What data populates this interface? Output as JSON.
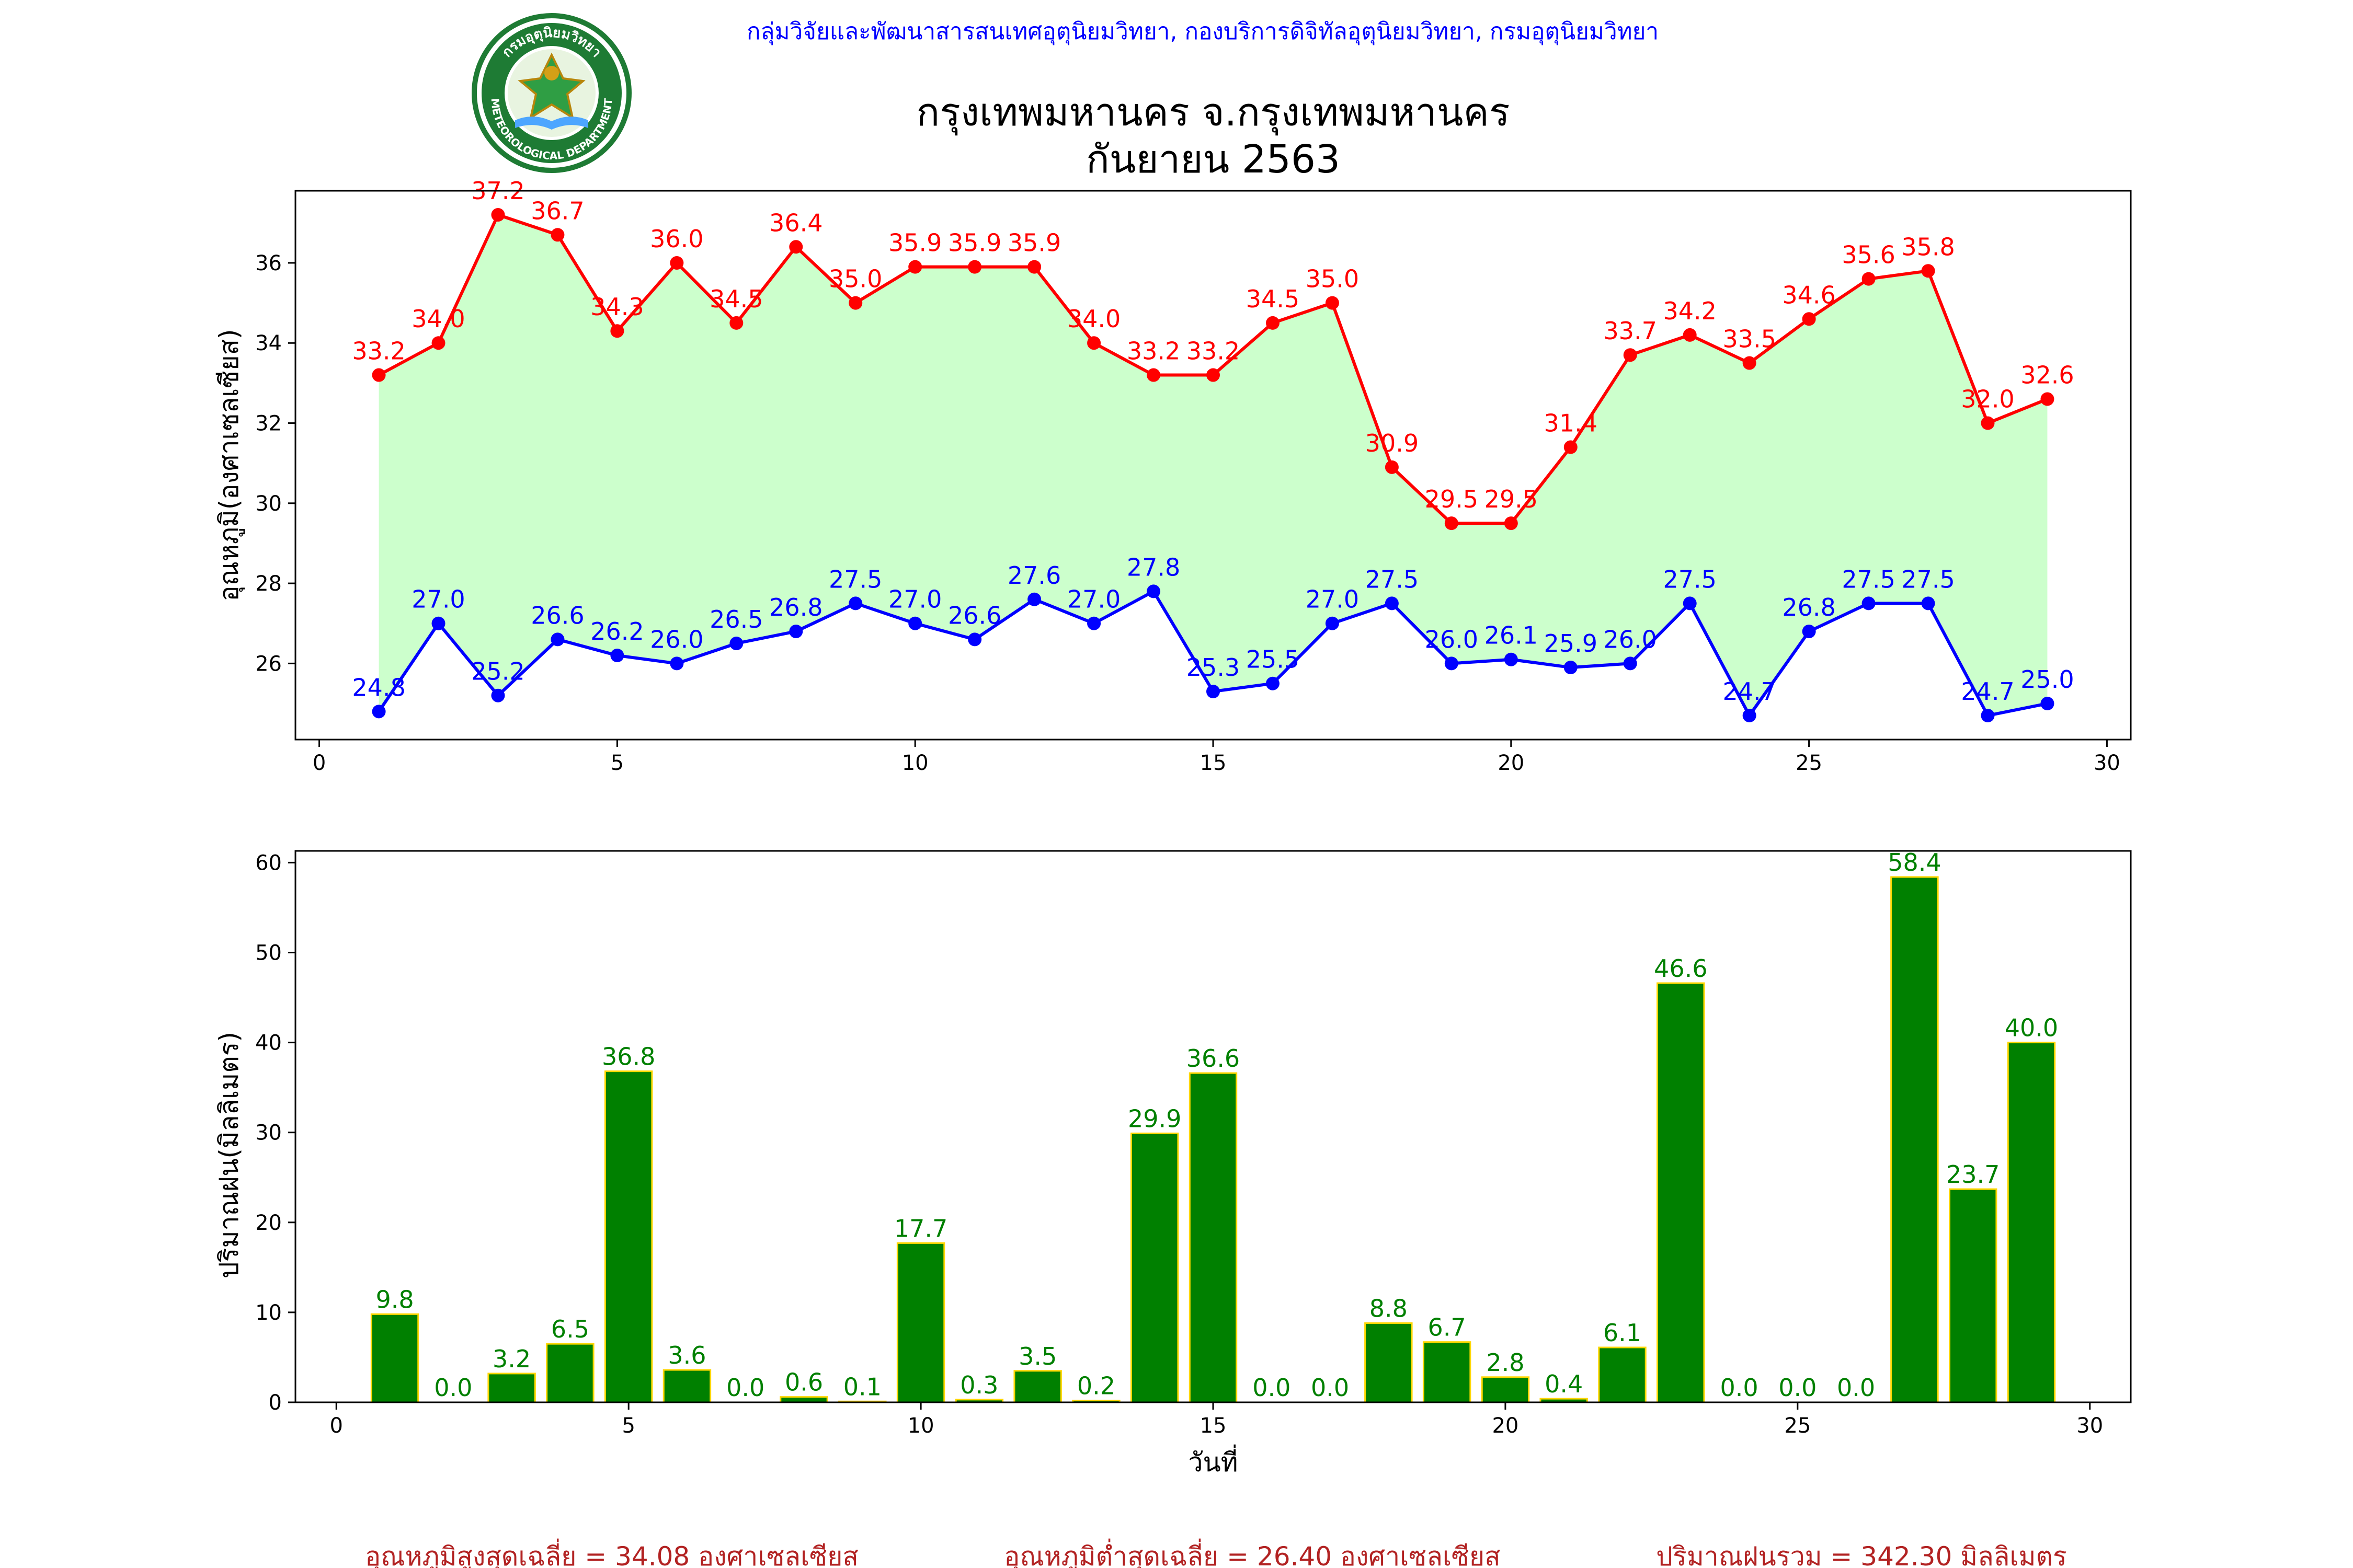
{
  "header": {
    "org_line": "กลุ่มวิจัยและพัฒนาสารสนเทศอุตุนิยมวิทยา, กองบริการดิจิทัลอุตุนิยมวิทยา, กรมอุตุนิยมวิทยา",
    "title_line1": "กรุงเทพมหานคร จ.กรุงเทพมหานคร",
    "title_line2": "กันยายน 2563",
    "logo_top_text": "กรมอุตุนิยมวิทยา",
    "logo_bottom_text": "METEOROLOGICAL DEPARTMENT"
  },
  "colors": {
    "max_line": "#ff0000",
    "min_line": "#0000ff",
    "fill": "#ccffcc",
    "bar_fill": "#008000",
    "bar_edge": "#ffd700",
    "bar_label": "#008000",
    "footer_text": "#b22222",
    "header_text": "#0000ff"
  },
  "chart_data": [
    {
      "type": "line",
      "ylabel": "อุณหภูมิ(องศาเซลเซียส)",
      "xlim": [
        -0.4,
        30.4
      ],
      "ylim": [
        24.1,
        37.8
      ],
      "xticks": [
        0,
        5,
        10,
        15,
        20,
        25,
        30
      ],
      "yticks": [
        26,
        28,
        30,
        32,
        34,
        36
      ],
      "x": [
        1,
        2,
        3,
        4,
        5,
        6,
        7,
        8,
        9,
        10,
        11,
        12,
        13,
        14,
        15,
        16,
        17,
        18,
        19,
        20,
        21,
        22,
        23,
        24,
        25,
        26,
        27,
        28,
        29
      ],
      "series": [
        {
          "values": [
            33.2,
            34.0,
            37.2,
            36.7,
            34.3,
            36.0,
            34.5,
            36.4,
            35.0,
            35.9,
            35.9,
            35.9,
            34.0,
            33.2,
            33.2,
            34.5,
            35.0,
            30.9,
            29.5,
            29.5,
            31.4,
            33.7,
            34.2,
            33.5,
            34.6,
            35.6,
            35.8,
            32.0,
            32.6
          ]
        },
        {
          "values": [
            24.8,
            27.0,
            25.2,
            26.6,
            26.2,
            26.0,
            26.5,
            26.8,
            27.5,
            27.0,
            26.6,
            27.6,
            27.0,
            27.8,
            25.3,
            25.5,
            27.0,
            27.5,
            26.0,
            26.1,
            25.9,
            26.0,
            27.5,
            24.7,
            26.8,
            27.5,
            27.5,
            24.7,
            25.0
          ]
        }
      ]
    },
    {
      "type": "bar",
      "ylabel": "ปริมาณฝน(มิลลิเมตร)",
      "xlabel": "วันที่",
      "xlim": [
        -0.7,
        30.7
      ],
      "ylim": [
        0,
        61.3
      ],
      "xticks": [
        0,
        5,
        10,
        15,
        20,
        25,
        30
      ],
      "yticks": [
        0,
        10,
        20,
        30,
        40,
        50,
        60
      ],
      "x": [
        1,
        2,
        3,
        4,
        5,
        6,
        7,
        8,
        9,
        10,
        11,
        12,
        13,
        14,
        15,
        16,
        17,
        18,
        19,
        20,
        21,
        22,
        23,
        24,
        25,
        26,
        27,
        28,
        29
      ],
      "values": [
        9.8,
        0.0,
        3.2,
        6.5,
        36.8,
        3.6,
        0.0,
        0.6,
        0.1,
        17.7,
        0.3,
        3.5,
        0.2,
        29.9,
        36.6,
        0.0,
        0.0,
        8.8,
        6.7,
        2.8,
        0.4,
        6.1,
        46.6,
        0.0,
        0.0,
        0.0,
        58.4,
        23.7,
        40.0
      ]
    }
  ],
  "footer": {
    "avg_max": "อุณหภูมิสูงสุดเฉลี่ย = 34.08 องศาเซลเซียส",
    "avg_min": "อุณหภูมิต่ำสุดเฉลี่ย = 26.40 องศาเซลเซียส",
    "rain_total": "ปริมาณฝนรวม = 342.30 มิลลิเมตร"
  }
}
